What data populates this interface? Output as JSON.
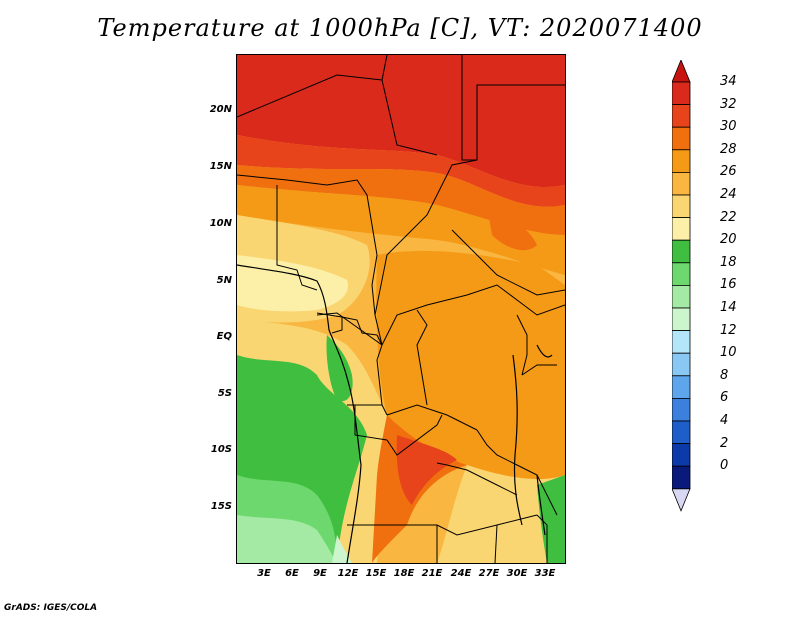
{
  "title": "Temperature at 1000hPa [C], VT: 2020071400",
  "credit": "GrADS: IGES/COLA",
  "lat_labels": [
    "20N",
    "15N",
    "10N",
    "5N",
    "EQ",
    "5S",
    "10S",
    "15S"
  ],
  "lon_labels": [
    "3E",
    "6E",
    "9E",
    "12E",
    "15E",
    "18E",
    "21E",
    "24E",
    "27E",
    "30E",
    "33E"
  ],
  "colorbar": {
    "labels": [
      "34",
      "32",
      "30",
      "28",
      "26",
      "24",
      "22",
      "20",
      "18",
      "16",
      "14",
      "12",
      "10",
      "8",
      "6",
      "4",
      "2",
      "0"
    ],
    "colors": [
      "#d92a1c",
      "#e8441b",
      "#f07010",
      "#f59a16",
      "#f9b640",
      "#fad672",
      "#fcf0a8",
      "#3fbe3f",
      "#6dd86d",
      "#a4eaa4",
      "#cdf5cd",
      "#b4e6fa",
      "#8ac8f4",
      "#5ea6ec",
      "#3a80dc",
      "#1e5ec8",
      "#0c3aa8",
      "#0a1a7a"
    ],
    "top_arrow_color": "#c8140e",
    "bottom_arrow_color": "#d8d8f4"
  }
}
